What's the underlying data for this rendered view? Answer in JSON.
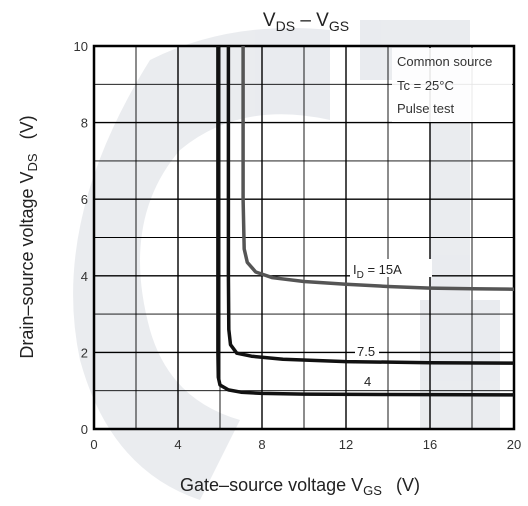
{
  "chart_data": {
    "type": "line",
    "title": {
      "main": "V",
      "sub1": "DS",
      "dash": " – V",
      "sub2": "GS"
    },
    "xlabel": {
      "main": "Gate–source voltage   V",
      "sub": "GS",
      "unit": "(V)"
    },
    "ylabel": {
      "main": "Drain–source voltage   V",
      "sub": "DS",
      "unit": "(V)"
    },
    "xlim": [
      0,
      20
    ],
    "ylim": [
      0,
      10
    ],
    "x_ticks": [
      "0",
      "4",
      "8",
      "12",
      "16",
      "20"
    ],
    "y_ticks": [
      "0",
      "2",
      "4",
      "6",
      "8",
      "10"
    ],
    "grid": true,
    "annotations": {
      "line1": "Common source",
      "line2": "Tc = 25°C",
      "line3": "Pulse test"
    },
    "series": [
      {
        "name": "I_D = 15A",
        "label_main": "I",
        "label_sub": "D",
        "label_rest": " = 15A",
        "color": "#555555",
        "points": [
          [
            7.1,
            10
          ],
          [
            7.1,
            8
          ],
          [
            7.1,
            6
          ],
          [
            7.15,
            4.7
          ],
          [
            7.3,
            4.35
          ],
          [
            7.7,
            4.1
          ],
          [
            8.5,
            3.95
          ],
          [
            10,
            3.85
          ],
          [
            12,
            3.78
          ],
          [
            14,
            3.72
          ],
          [
            16,
            3.68
          ],
          [
            18,
            3.66
          ],
          [
            20,
            3.65
          ]
        ]
      },
      {
        "name": "7.5",
        "label_main": "7.5",
        "color": "#111111",
        "points": [
          [
            6.4,
            10
          ],
          [
            6.4,
            8
          ],
          [
            6.4,
            6
          ],
          [
            6.4,
            4
          ],
          [
            6.42,
            2.6
          ],
          [
            6.5,
            2.2
          ],
          [
            6.8,
            1.98
          ],
          [
            7.5,
            1.9
          ],
          [
            9,
            1.82
          ],
          [
            12,
            1.76
          ],
          [
            16,
            1.73
          ],
          [
            20,
            1.72
          ]
        ]
      },
      {
        "name": "4",
        "label_main": "4",
        "color": "#111111",
        "points": [
          [
            5.9,
            10
          ],
          [
            5.9,
            8
          ],
          [
            5.9,
            6
          ],
          [
            5.9,
            4
          ],
          [
            5.9,
            2
          ],
          [
            5.92,
            1.35
          ],
          [
            6.0,
            1.15
          ],
          [
            6.4,
            1.02
          ],
          [
            7,
            0.96
          ],
          [
            8,
            0.93
          ],
          [
            10,
            0.91
          ],
          [
            14,
            0.9
          ],
          [
            20,
            0.89
          ]
        ]
      }
    ]
  }
}
